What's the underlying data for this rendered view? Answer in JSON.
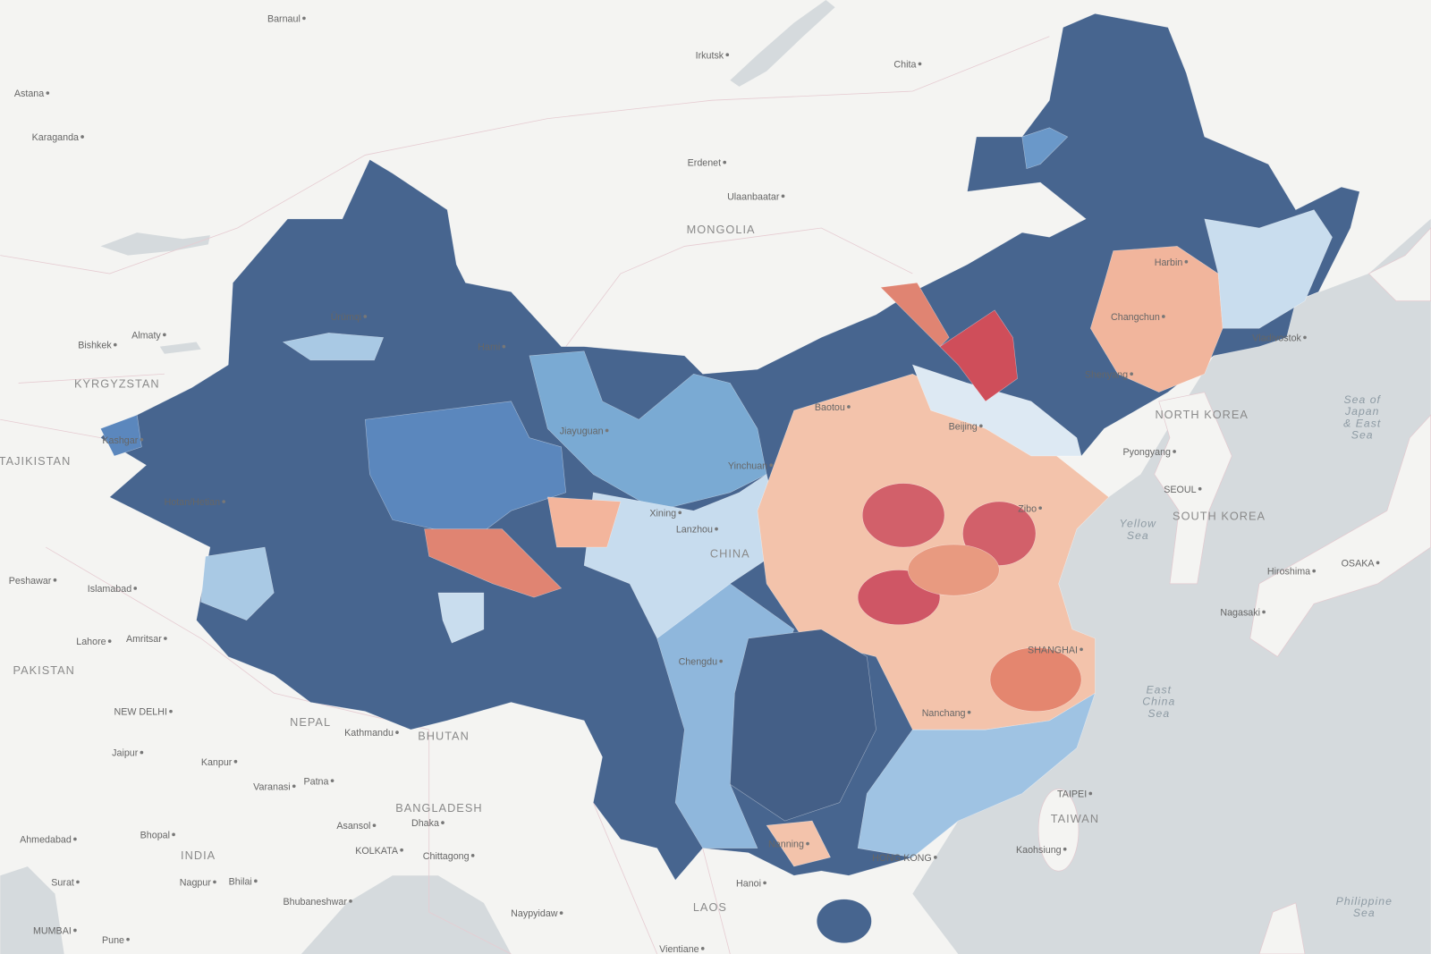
{
  "countries": [
    "MONGOLIA",
    "KYRGYZSTAN",
    "TAJIKISTAN",
    "PAKISTAN",
    "NEPAL",
    "BHUTAN",
    "BANGLADESH",
    "INDIA",
    "LAOS",
    "NORTH KOREA",
    "SOUTH KOREA",
    "TAIWAN",
    "CHINA"
  ],
  "cities": [
    "Barnaul",
    "Astana",
    "Karaganda",
    "Irkutsk",
    "Chita",
    "Erdenet",
    "Ulaanbaatar",
    "Almaty",
    "Bishkek",
    "Hami",
    "Kashgar",
    "Hotan/Hetian",
    "Ürümqi",
    "Jiayuguan",
    "Yinchuan",
    "Xining",
    "Lanzhou",
    "Baotou",
    "Beijing",
    "Zibo",
    "Harbin",
    "Changchun",
    "Shenyang",
    "Vladivostok",
    "Pyongyang",
    "SEOUL",
    "Hiroshima",
    "OSAKA",
    "Nagasaki",
    "Chengdu",
    "Nanchang",
    "Nanning",
    "HONG KONG",
    "Hanoi",
    "TAIPEI",
    "Kaohsiung",
    "Naypyidaw",
    "Vientiane",
    "Peshawar",
    "Islamabad",
    "Lahore",
    "Amritsar",
    "NEW DELHI",
    "Kathmandu",
    "Jaipur",
    "Kanpur",
    "Varanasi",
    "Patna",
    "Asansol",
    "Dhaka",
    "KOLKATA",
    "Chittagong",
    "Ahmedabad",
    "Bhopal",
    "Nagpur",
    "Bhilai",
    "Surat",
    "Bhubaneshwar",
    "MUMBAI",
    "Pune",
    "SHANGHAI"
  ],
  "seas": [
    {
      "lines": [
        "Sea of",
        "Japan",
        "& East",
        "Sea"
      ]
    },
    {
      "lines": [
        "Yellow",
        "Sea"
      ]
    },
    {
      "lines": [
        "East",
        "China",
        "Sea"
      ]
    },
    {
      "lines": [
        "Philippine",
        "Sea"
      ]
    }
  ]
}
